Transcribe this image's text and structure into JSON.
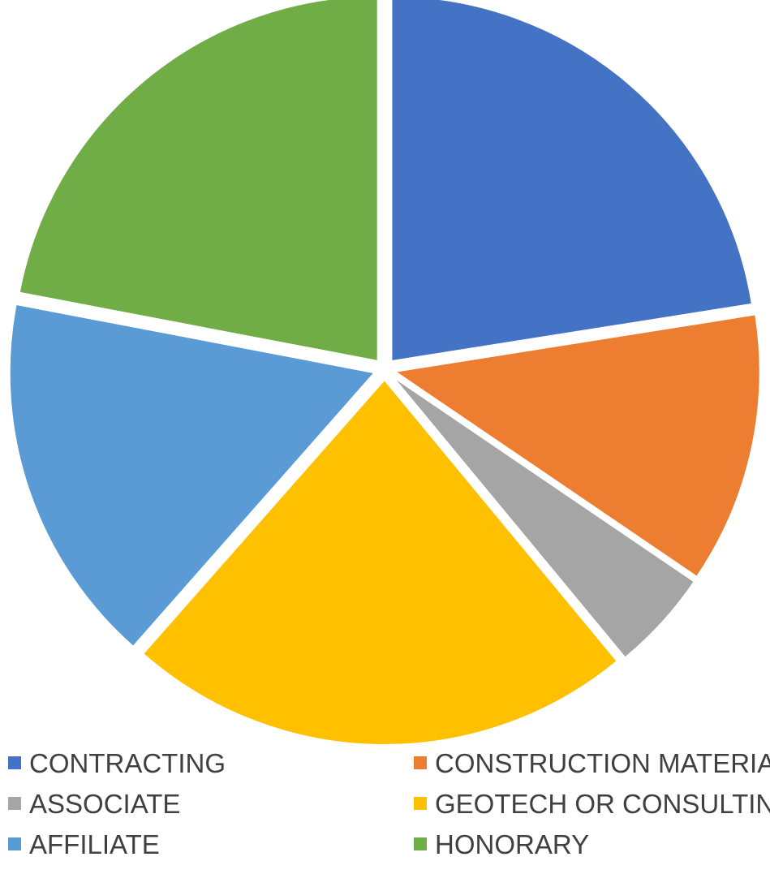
{
  "chart_data": {
    "type": "pie",
    "title": "",
    "categories": [
      "CONTRACTING",
      "CONSTRUCTION MATERIAL",
      "ASSOCIATE",
      "GEOTECH OR CONSULTING",
      "AFFILIATE",
      "HONORARY"
    ],
    "values": [
      22.5,
      12.0,
      4.5,
      22.5,
      16.5,
      22.0
    ],
    "colors": [
      "#4472C4",
      "#ED7D31",
      "#A5A5A5",
      "#FFC000",
      "#5B9BD5",
      "#70AD47"
    ],
    "legend_position": "bottom",
    "exploded": true,
    "start_angle": "top, clockwise"
  }
}
